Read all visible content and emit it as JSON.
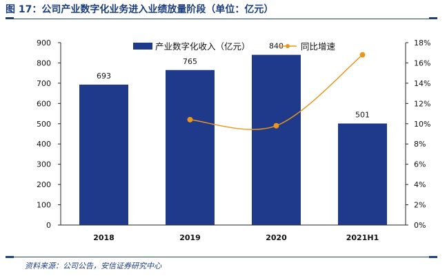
{
  "figure": {
    "title": "图 17：公司产业数字化业务进入业绩放量阶段（单位：亿元）",
    "source": "资料来源：公司公告，安信证券研究中心",
    "accent_color": "#1b3d7d"
  },
  "chart_data": {
    "type": "bar",
    "categories": [
      "2018",
      "2019",
      "2020",
      "2021H1"
    ],
    "series": [
      {
        "name": "产业数字化收入（亿元）",
        "type": "bar",
        "axis": "left",
        "values": [
          693,
          765,
          840,
          501
        ],
        "data_labels": [
          "693",
          "765",
          "840",
          "501"
        ],
        "color": "#1f3a8a"
      },
      {
        "name": "同比增速",
        "type": "line",
        "axis": "right",
        "values": [
          null,
          10.4,
          9.8,
          16.8
        ],
        "unit": "%",
        "color": "#e8961e"
      }
    ],
    "left_axis": {
      "ylim": [
        0,
        900
      ],
      "ticks": [
        "0",
        "100",
        "200",
        "300",
        "400",
        "500",
        "600",
        "700",
        "800",
        "900"
      ]
    },
    "right_axis": {
      "ylim": [
        0,
        18
      ],
      "ticks": [
        "0%",
        "2%",
        "4%",
        "6%",
        "8%",
        "10%",
        "12%",
        "14%",
        "16%",
        "18%"
      ]
    },
    "legend_position": "top-center",
    "grid": false
  }
}
